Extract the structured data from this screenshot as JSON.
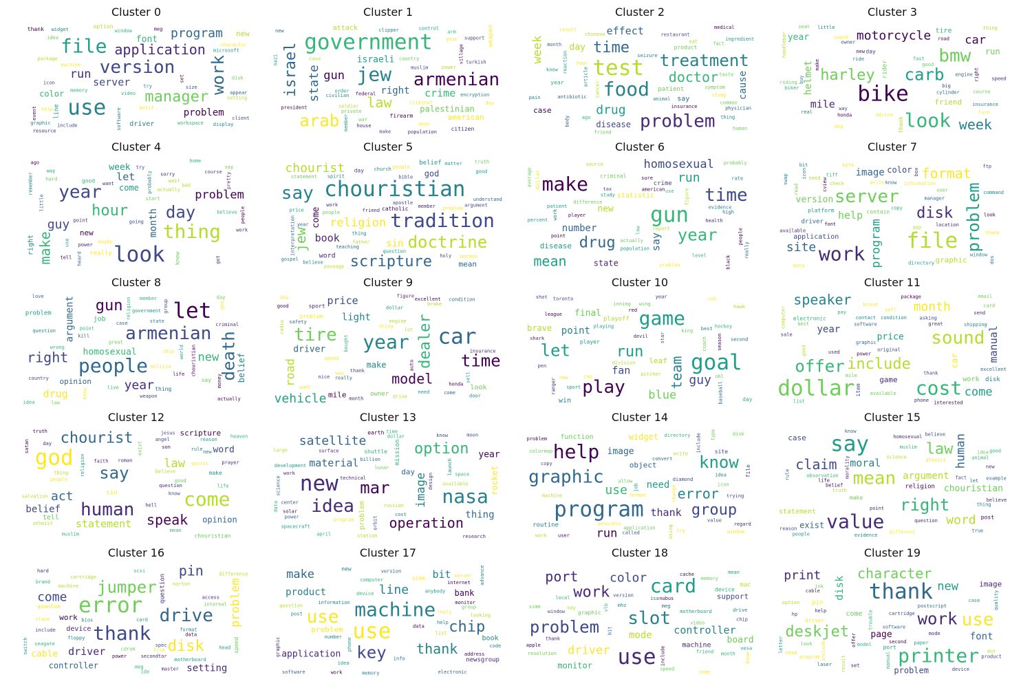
{
  "figure": {
    "palette": [
      "#440154",
      "#482878",
      "#3e4989",
      "#31688e",
      "#26828e",
      "#1f9e89",
      "#35b779",
      "#6ece58",
      "#b5de2b",
      "#fde725"
    ],
    "clusters": [
      {
        "title": "Cluster 0",
        "words": [
          "use",
          "file",
          "version",
          "work",
          "manager",
          "application",
          "program",
          "run",
          "server",
          "problem",
          "font",
          "color",
          "new",
          "driver",
          "line",
          "thank",
          "option",
          "include",
          "event",
          "client",
          "icon",
          "widget",
          "character",
          "workspace",
          "setting",
          "resource",
          "graphic",
          "window",
          "machine",
          "appear",
          "idea",
          "meg",
          "memory",
          "display",
          "microsoft",
          "help",
          "disk",
          "set",
          "try",
          "software",
          "package",
          "motif",
          "video",
          "size"
        ]
      },
      {
        "title": "Cluster 1",
        "words": [
          "government",
          "jew",
          "armenian",
          "arab",
          "israel",
          "law",
          "state",
          "gun",
          "crime",
          "right",
          "israeli",
          "palestinian",
          "american",
          "attack",
          "weapon",
          "firearm",
          "citizen",
          "mean",
          "new",
          "muslim",
          "criminal",
          "soldier",
          "civilian",
          "village",
          "nazi",
          "day",
          "year",
          "arm",
          "turkish",
          "federal",
          "president",
          "power",
          "encryption",
          "clipper",
          "population",
          "house",
          "case",
          "member",
          "country",
          "war",
          "support",
          "private",
          "control",
          "make",
          "order"
        ]
      },
      {
        "title": "Cluster 2",
        "words": [
          "test",
          "food",
          "problem",
          "treatment",
          "time",
          "doctor",
          "drug",
          "week",
          "effect",
          "cause",
          "day",
          "disease",
          "case",
          "say",
          "patient",
          "year",
          "product",
          "restaurant",
          "result",
          "reaction",
          "seizure",
          "physician",
          "friend",
          "hour",
          "antibiotic",
          "symptom",
          "human",
          "study",
          "month",
          "medical",
          "insurance",
          "body",
          "ingredient",
          "taste",
          "cancer",
          "animal",
          "thing",
          "eat",
          "ago",
          "know",
          "pain",
          "article",
          "chinese",
          "common",
          "fact"
        ]
      },
      {
        "title": "Cluster 3",
        "words": [
          "bike",
          "look",
          "bmw",
          "carb",
          "harley",
          "week",
          "motorcycle",
          "car",
          "mile",
          "helmet",
          "year",
          "run",
          "friend",
          "tire",
          "rider",
          "day",
          "thank",
          "owner",
          "handlebar",
          "thing",
          "biker",
          "honda",
          "riding",
          "course",
          "speed",
          "engine",
          "dog",
          "way",
          "real",
          "right",
          "ride",
          "seat",
          "turn",
          "advice",
          "good",
          "buy",
          "big",
          "sound",
          "little",
          "fast",
          "insurance",
          "road",
          "cylinder",
          "new",
          "make"
        ]
      },
      {
        "title": "Cluster 4",
        "words": [
          "look",
          "thing",
          "year",
          "day",
          "hour",
          "make",
          "guy",
          "problem",
          "let",
          "month",
          "week",
          "come",
          "new",
          "right",
          "really",
          "good",
          "know",
          "maybe",
          "little",
          "probably",
          "got",
          "use",
          "say",
          "tell",
          "way",
          "work",
          "start",
          "pretty",
          "remember",
          "power",
          "ago",
          "going",
          "home",
          "believe",
          "course",
          "sorry",
          "try",
          "hard",
          "actually",
          "want",
          "people",
          "wait",
          "heard",
          "bad",
          "point"
        ]
      },
      {
        "title": "Cluster 5",
        "words": [
          "chouristian",
          "tradition",
          "say",
          "doctrine",
          "scripture",
          "jew",
          "chourist",
          "religion",
          "book",
          "sin",
          "come",
          "god",
          "mean",
          "word",
          "belief",
          "day",
          "catholic",
          "interpretation",
          "teaching",
          "argument",
          "mormon",
          "gospel",
          "statement",
          "church",
          "apostle",
          "problem",
          "member",
          "father",
          "truth",
          "people",
          "friend",
          "believe",
          "passage",
          "bible",
          "question",
          "work",
          "thing",
          "matter",
          "holy",
          "spirit",
          "understand",
          "good",
          "price",
          "year",
          "people"
        ]
      },
      {
        "title": "Cluster 6",
        "words": [
          "gun",
          "make",
          "time",
          "year",
          "drug",
          "mean",
          "run",
          "homosexual",
          "say",
          "number",
          "new",
          "state",
          "disease",
          "statistic",
          "crime",
          "criminal",
          "dollar",
          "patient",
          "player",
          "black",
          "rate",
          "american",
          "problem",
          "percent",
          "actually",
          "health",
          "tax",
          "study",
          "source",
          "difference",
          "population",
          "people",
          "evidence",
          "probably",
          "work",
          "really",
          "level",
          "figure",
          "average",
          "use",
          "report",
          "low",
          "high",
          "sure",
          "point"
        ]
      },
      {
        "title": "Cluster 7",
        "words": [
          "file",
          "work",
          "server",
          "problem",
          "disk",
          "format",
          "site",
          "program",
          "help",
          "image",
          "version",
          "color",
          "graphic",
          "application",
          "driver",
          "platform",
          "contain",
          "thank",
          "byte",
          "user",
          "dos",
          "font",
          "app",
          "window",
          "bit",
          "ftp",
          "tiff",
          "cview",
          "read",
          "copy",
          "directory",
          "information",
          "available",
          "manager",
          "check",
          "location",
          "write",
          "icon",
          "swap",
          "look",
          "command",
          "know",
          "data",
          "need",
          "box"
        ]
      },
      {
        "title": "Cluster 8",
        "words": [
          "let",
          "people",
          "armenian",
          "death",
          "gun",
          "right",
          "year",
          "new",
          "drug",
          "argument",
          "homosexual",
          "belief",
          "opinion",
          "job",
          "problem",
          "say",
          "thing",
          "chouristian",
          "day",
          "criminal",
          "kill",
          "weapon",
          "god",
          "member",
          "religion",
          "question",
          "case",
          "state",
          "life",
          "world",
          "love",
          "chip",
          "group",
          "law",
          "wrong",
          "point",
          "know",
          "live",
          "great",
          "idea",
          "militia",
          "country",
          "government",
          "money",
          "actually"
        ]
      },
      {
        "title": "Cluster 9",
        "words": [
          "car",
          "year",
          "tire",
          "time",
          "dealer",
          "model",
          "vehicle",
          "road",
          "price",
          "light",
          "driver",
          "make",
          "mile",
          "look",
          "owner",
          "problem",
          "sport",
          "thing",
          "come",
          "day",
          "honda",
          "auto",
          "lot",
          "good",
          "month",
          "speed",
          "engine",
          "brake",
          "sell",
          "way",
          "nice",
          "excellent",
          "door",
          "want",
          "radio",
          "bought",
          "dollar",
          "need",
          "insurance",
          "figure",
          "thank",
          "drive",
          "condition",
          "really",
          "safety"
        ]
      },
      {
        "title": "Cluster 10",
        "words": [
          "goal",
          "game",
          "play",
          "let",
          "run",
          "team",
          "guy",
          "blue",
          "fan",
          "point",
          "final",
          "brave",
          "leaf",
          "win",
          "playoff",
          "day",
          "player",
          "red",
          "year",
          "new",
          "wing",
          "pitcher",
          "sport",
          "star",
          "shark",
          "cub",
          "king",
          "devil",
          "hockey",
          "pen",
          "ranger",
          "coach",
          "nhl",
          "league",
          "season",
          "shot",
          "inning",
          "best",
          "playing",
          "hawk",
          "cap",
          "toronto",
          "baseball",
          "second",
          "division"
        ]
      },
      {
        "title": "Cluster 11",
        "words": [
          "dollar",
          "cost",
          "sound",
          "offer",
          "include",
          "speaker",
          "month",
          "come",
          "manual",
          "year",
          "price",
          "car",
          "game",
          "work",
          "disk",
          "item",
          "electronic",
          "sell",
          "pay",
          "thank",
          "shipping",
          "excellent",
          "available",
          "email",
          "original",
          "condition",
          "package",
          "brand",
          "great",
          "mile",
          "card",
          "software",
          "computer",
          "good",
          "used",
          "phone",
          "interested",
          "contact",
          "power",
          "graphic",
          "send",
          "asking",
          "sale",
          "best",
          "list"
        ]
      },
      {
        "title": "Cluster 12",
        "words": [
          "god",
          "come",
          "human",
          "say",
          "chourist",
          "speak",
          "act",
          "law",
          "statement",
          "belief",
          "word",
          "opinion",
          "scripture",
          "tell",
          "sin",
          "make",
          "chouristian",
          "exist",
          "prayer",
          "mean",
          "know",
          "atheist",
          "son",
          "muslim",
          "heaven",
          "religion",
          "faith",
          "spirit",
          "life",
          "jesus",
          "roman",
          "satan",
          "angel",
          "hell",
          "people",
          "believe",
          "thing",
          "truth",
          "rule",
          "new",
          "day",
          "question",
          "reason",
          "salvation",
          "good"
        ]
      },
      {
        "title": "Cluster 13",
        "words": [
          "new",
          "nasa",
          "idea",
          "mar",
          "option",
          "operation",
          "satellite",
          "image",
          "material",
          "thing",
          "year",
          "rocket",
          "day",
          "problem",
          "mission",
          "shuttle",
          "earth",
          "time",
          "launch",
          "space",
          "moon",
          "orbit",
          "data",
          "research",
          "center",
          "cost",
          "science",
          "program",
          "station",
          "spacecraft",
          "solar",
          "power",
          "work",
          "know",
          "design",
          "surface",
          "russian",
          "dollar",
          "april",
          "available",
          "development",
          "billion",
          "technical",
          "large",
          "lunar"
        ]
      },
      {
        "title": "Cluster 14",
        "words": [
          "program",
          "help",
          "graphic",
          "know",
          "group",
          "error",
          "use",
          "run",
          "thank",
          "need",
          "image",
          "widget",
          "object",
          "function",
          "routine",
          "site",
          "file",
          "problem",
          "format",
          "value",
          "application",
          "icon",
          "work",
          "include",
          "directory",
          "colormap",
          "allow",
          "regard",
          "window",
          "job",
          "machine",
          "user",
          "try",
          "possible",
          "change",
          "convert",
          "diamond",
          "copy",
          "idea",
          "called",
          "disk",
          "type",
          "using",
          "write",
          "trying"
        ]
      },
      {
        "title": "Cluster 15",
        "words": [
          "say",
          "value",
          "mean",
          "right",
          "law",
          "claim",
          "word",
          "human",
          "moral",
          "argument",
          "chouristian",
          "exist",
          "case",
          "statement",
          "religion",
          "make",
          "post",
          "thing",
          "belief",
          "atheist",
          "muslim",
          "homosexual",
          "observation",
          "idea",
          "rule",
          "animal",
          "example",
          "truth",
          "morality",
          "evidence",
          "new",
          "let",
          "science",
          "reason",
          "believe",
          "true",
          "different",
          "believe",
          "good",
          "know",
          "point",
          "fact",
          "people",
          "question",
          "life"
        ]
      },
      {
        "title": "Cluster 16",
        "words": [
          "error",
          "thank",
          "drive",
          "jumper",
          "disk",
          "pin",
          "come",
          "problem",
          "driver",
          "setting",
          "cable",
          "controller",
          "work",
          "device",
          "question",
          "speed",
          "quantum",
          "meg",
          "bios",
          "power",
          "motherboard",
          "switch",
          "brand",
          "head",
          "include",
          "spec",
          "cdrom",
          "internal",
          "format",
          "slave",
          "master",
          "ide",
          "floppy",
          "seagate",
          "norton",
          "scsi",
          "card",
          "machine",
          "cartridge",
          "file",
          "access",
          "difference",
          "secondtor",
          "hard",
          "data"
        ]
      },
      {
        "title": "Cluster 17",
        "words": [
          "use",
          "machine",
          "use",
          "key",
          "chip",
          "thank",
          "line",
          "make",
          "bit",
          "product",
          "application",
          "bank",
          "problem",
          "book",
          "newsgroup",
          "simm",
          "new",
          "question",
          "work",
          "electronic",
          "device",
          "idea",
          "info",
          "graphic",
          "code",
          "number",
          "memory",
          "monitor",
          "server",
          "post",
          "list",
          "reply",
          "address",
          "advance",
          "internet",
          "computer",
          "data",
          "software",
          "information",
          "group",
          "phone",
          "looking",
          "version",
          "help",
          "anybody"
        ]
      },
      {
        "title": "Cluster 18",
        "words": [
          "use",
          "card",
          "slot",
          "problem",
          "work",
          "port",
          "color",
          "driver",
          "controller",
          "mode",
          "board",
          "monitor",
          "support",
          "machine",
          "mac",
          "graphic",
          "device",
          "thank",
          "come",
          "friend",
          "drive",
          "resolution",
          "cache",
          "meg",
          "say",
          "video",
          "include",
          "speed",
          "bit",
          "mean",
          "vesa",
          "simm",
          "chip",
          "window",
          "isa",
          "version",
          "local",
          "memory",
          "apple",
          "nubus",
          "know",
          "month",
          "motherboard",
          "mhz",
          "vlb"
        ]
      },
      {
        "title": "Cluster 19",
        "words": [
          "thank",
          "printer",
          "use",
          "work",
          "deskjet",
          "character",
          "print",
          "new",
          "disk",
          "font",
          "page",
          "problem",
          "image",
          "come",
          "pin",
          "driver",
          "port",
          "manual",
          "model",
          "offer",
          "cable",
          "case",
          "cartridge",
          "letter",
          "include",
          "device",
          "program",
          "trouble",
          "second",
          "product",
          "laser",
          "paper",
          "quality",
          "postscript",
          "dot",
          "look",
          "result",
          "ink",
          "option",
          "set",
          "mode",
          "need",
          "hp",
          "software",
          "help"
        ]
      }
    ]
  }
}
